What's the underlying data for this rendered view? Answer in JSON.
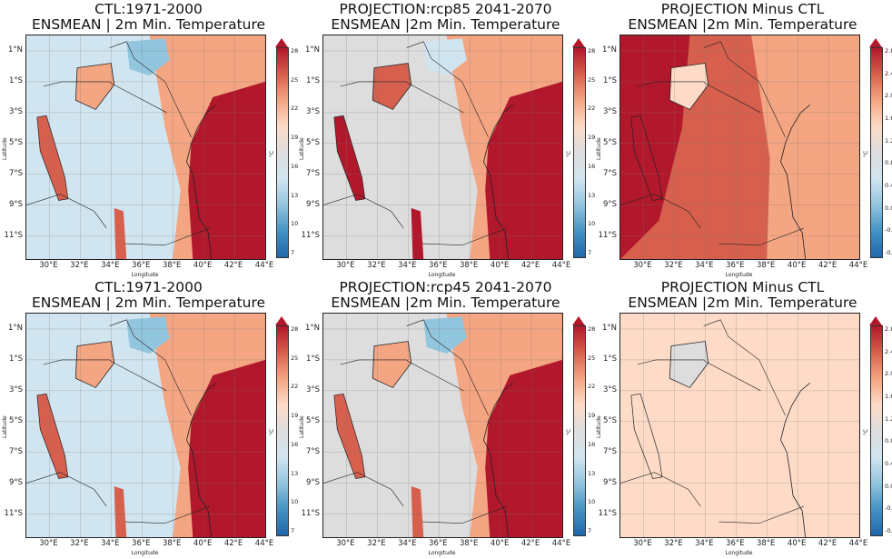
{
  "figure": "ENSMEAN 2m minimum temperature: control, projections and differences over East Africa",
  "axes": {
    "lat_ticks": [
      "1°N",
      "1°S",
      "3°S",
      "5°S",
      "7°S",
      "9°S",
      "11°S"
    ],
    "lon_ticks": [
      "30°E",
      "32°E",
      "34°E",
      "36°E",
      "38°E",
      "40°E",
      "42°E",
      "44°E"
    ],
    "xlabel": "Longitude",
    "ylabel": "Latitude"
  },
  "colorbars": {
    "abs": {
      "ticks": [
        "28",
        "25",
        "22",
        "19",
        "16",
        "13",
        "10",
        "7"
      ],
      "unit": "°C",
      "colors": [
        "#b2182b",
        "#d6604d",
        "#f4a582",
        "#fddbc7",
        "#dddddd",
        "#d1e5f0",
        "#92c5de",
        "#4393c3",
        "#2166ac"
      ]
    },
    "diff": {
      "ticks": [
        "2.8",
        "2.4",
        "2.0",
        "1.6",
        "1.2",
        "0.8",
        "0.4",
        "0.0",
        "-0.4",
        "-0.8"
      ],
      "unit": "°C",
      "colors": [
        "#b2182b",
        "#d6604d",
        "#f4a582",
        "#fddbc7",
        "#dddddd",
        "#d1e5f0",
        "#92c5de",
        "#4393c3",
        "#2166ac"
      ]
    }
  },
  "chart_data": [
    {
      "type": "heatmap",
      "title_line1": "CTL:1971-2000",
      "title_line2": "ENSMEAN | 2m Min. Temperature",
      "variable": "2m minimum temperature",
      "unit": "°C",
      "colorbar_range": [
        7,
        28
      ],
      "lat_range": [
        -12.5,
        2
      ],
      "lon_range": [
        28.5,
        44
      ],
      "region_values": {
        "indian_ocean_coast": 26,
        "lake_victoria": 22,
        "lake_tanganyika": 25,
        "ethiopian_highlands": 13,
        "central_plateau": 16,
        "eastern_lowlands": 22
      }
    },
    {
      "type": "heatmap",
      "title_line1": "PROJECTION:rcp85 2041-2070",
      "title_line2": "ENSMEAN |2m Min. Temperature",
      "variable": "2m minimum temperature",
      "unit": "°C",
      "colorbar_range": [
        7,
        28
      ],
      "lat_range": [
        -12.5,
        2
      ],
      "lon_range": [
        28.5,
        44
      ],
      "region_values": {
        "indian_ocean_coast": 27,
        "lake_victoria": 24,
        "lake_tanganyika": 26,
        "ethiopian_highlands": 14,
        "central_plateau": 18,
        "eastern_lowlands": 23
      }
    },
    {
      "type": "heatmap",
      "title_line1": "PROJECTION Minus CTL",
      "title_line2": "ENSMEAN |2m Min. Temperature",
      "variable": "2m minimum temperature change",
      "unit": "°C",
      "colorbar_range": [
        -0.8,
        2.8
      ],
      "lat_range": [
        -12.5,
        2
      ],
      "lon_range": [
        28.5,
        44
      ],
      "region_values": {
        "western_highlands": 2.6,
        "lake_victoria": 1.5,
        "central": 2.1,
        "coast": 1.8,
        "ocean": 1.7
      }
    },
    {
      "type": "heatmap",
      "title_line1": "CTL:1971-2000",
      "title_line2": "ENSMEAN | 2m Min. Temperature",
      "variable": "2m minimum temperature",
      "unit": "°C",
      "colorbar_range": [
        7,
        28
      ],
      "lat_range": [
        -12.5,
        2
      ],
      "lon_range": [
        28.5,
        44
      ],
      "region_values": {
        "indian_ocean_coast": 26,
        "lake_victoria": 22,
        "lake_tanganyika": 25,
        "ethiopian_highlands": 13,
        "central_plateau": 16,
        "eastern_lowlands": 22
      }
    },
    {
      "type": "heatmap",
      "title_line1": "PROJECTION:rcp45 2041-2070",
      "title_line2": "ENSMEAN |2m Min. Temperature",
      "variable": "2m minimum temperature",
      "unit": "°C",
      "colorbar_range": [
        7,
        28
      ],
      "lat_range": [
        -12.5,
        2
      ],
      "lon_range": [
        28.5,
        44
      ],
      "region_values": {
        "indian_ocean_coast": 27,
        "lake_victoria": 23,
        "lake_tanganyika": 25,
        "ethiopian_highlands": 13,
        "central_plateau": 17,
        "eastern_lowlands": 22
      }
    },
    {
      "type": "heatmap",
      "title_line1": "PROJECTION Minus CTL",
      "title_line2": "ENSMEAN |2m Min. Temperature",
      "variable": "2m minimum temperature change",
      "unit": "°C",
      "colorbar_range": [
        -0.8,
        2.8
      ],
      "lat_range": [
        -12.5,
        2
      ],
      "lon_range": [
        28.5,
        44
      ],
      "region_values": {
        "western_highlands": 1.5,
        "lake_victoria": 1.1,
        "central": 1.4,
        "coast": 1.5,
        "ocean": 1.5
      }
    }
  ]
}
